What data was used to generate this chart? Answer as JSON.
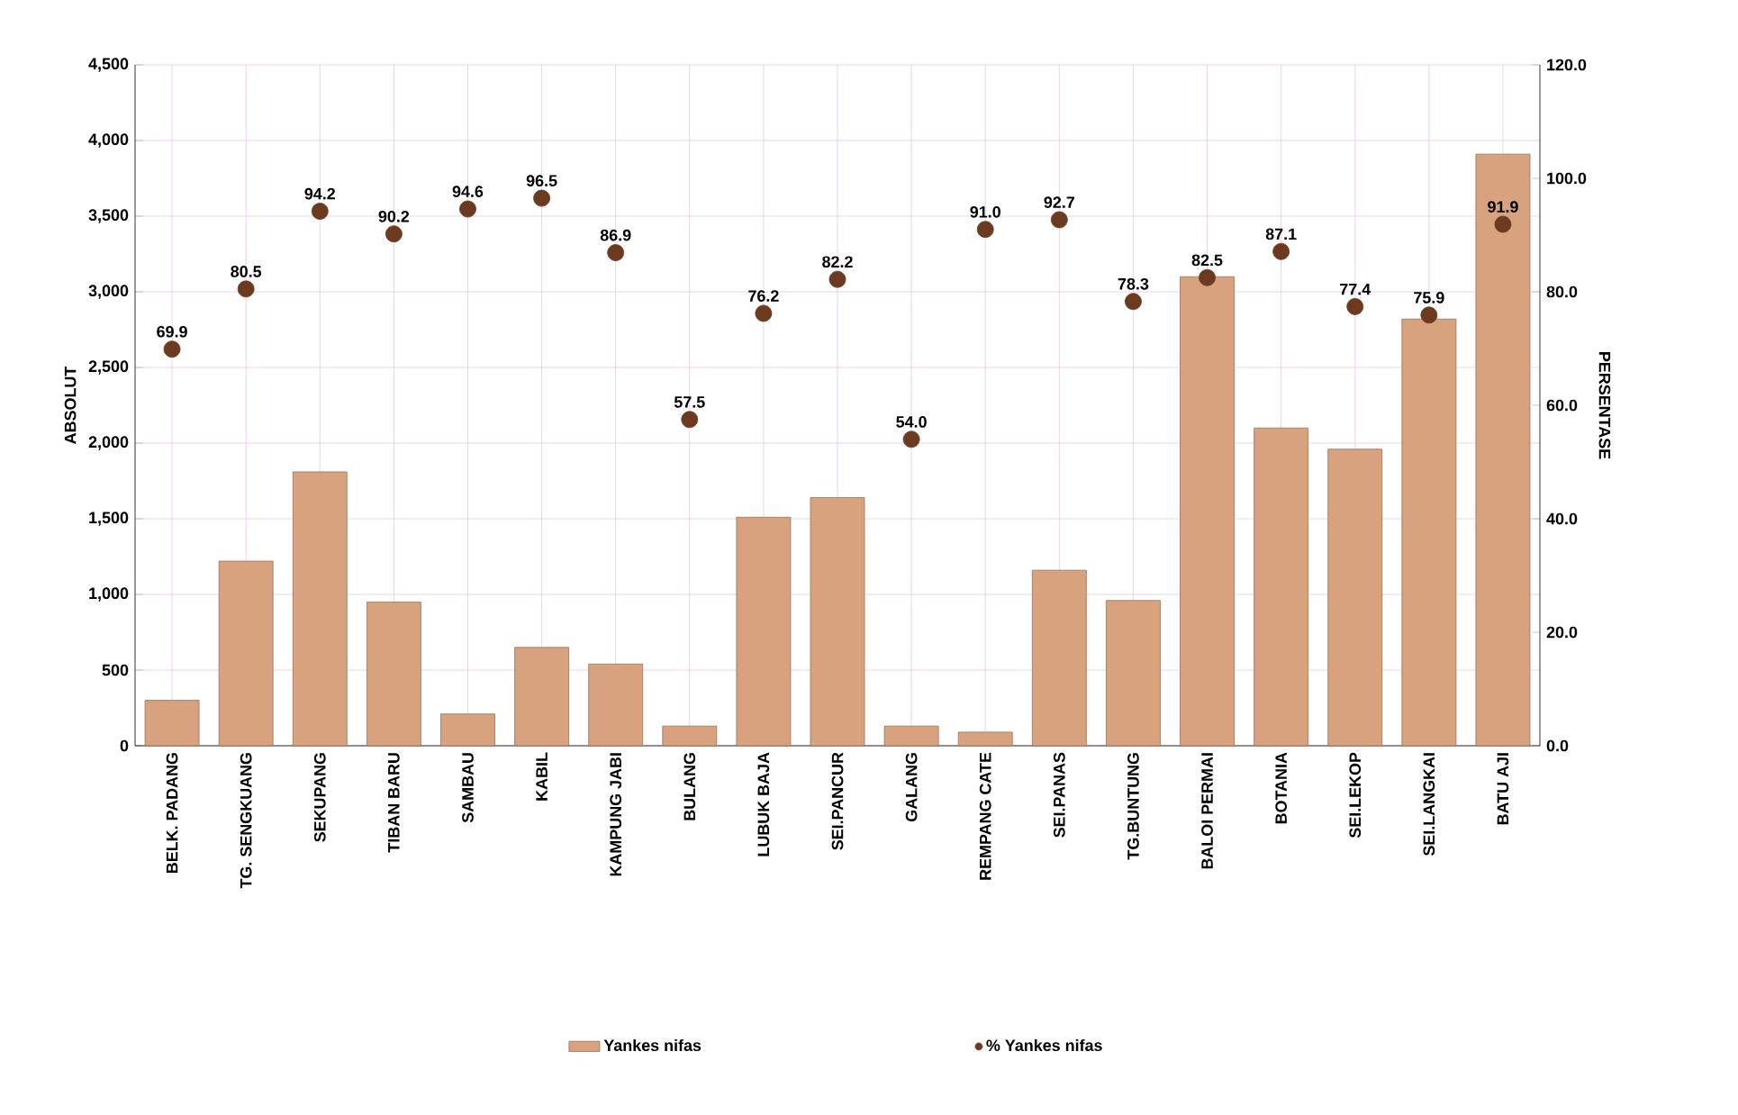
{
  "chart_data": {
    "type": "bar",
    "ylabel": "ABSOLUT",
    "y2label": "PERSENTASE",
    "categories": [
      "BELK.  PADANG",
      "TG. SENGKUANG",
      "SEKUPANG",
      "TIBAN BARU",
      "SAMBAU",
      "KABIL",
      "KAMPUNG JABI",
      "BULANG",
      "LUBUK BAJA",
      "SEI.PANCUR",
      "GALANG",
      "REMPANG CATE",
      "SEI.PANAS",
      "TG.BUNTUNG",
      "BALOI PERMAI",
      "BOTANIA",
      "SEI.LEKOP",
      "SEI.LANGKAI",
      "BATU AJI"
    ],
    "series": [
      {
        "name": "Yankes nifas",
        "color": "#d9a27e",
        "values": [
          300,
          1220,
          1810,
          950,
          210,
          650,
          540,
          130,
          1510,
          1640,
          130,
          90,
          1160,
          960,
          3100,
          2100,
          1960,
          2820,
          3910
        ]
      },
      {
        "name": "% Yankes nifas",
        "type": "scatter",
        "axis": "y2",
        "color": "#6b3a1f",
        "values": [
          69.9,
          80.5,
          94.2,
          90.2,
          94.6,
          96.5,
          86.9,
          57.5,
          76.2,
          82.2,
          54.0,
          91.0,
          92.7,
          78.3,
          82.5,
          87.1,
          77.4,
          75.9,
          91.9
        ],
        "value_labels": [
          "69.9",
          "80.5",
          "94.2",
          "90.2",
          "94.6",
          "96.5",
          "86.9",
          "57.5",
          "76.2",
          "82.2",
          "54.0",
          "91.0",
          "92.7",
          "78.3",
          "82.5",
          "87.1",
          "77.4",
          "75.9",
          "91.9"
        ]
      }
    ],
    "ylim": [
      0,
      4500
    ],
    "yticks": [
      {
        "value": 0,
        "label": "0"
      },
      {
        "value": 500,
        "label": "500"
      },
      {
        "value": 1000,
        "label": "1,000"
      },
      {
        "value": 1500,
        "label": "1,500"
      },
      {
        "value": 2000,
        "label": "2,000"
      },
      {
        "value": 2500,
        "label": "2,500"
      },
      {
        "value": 3000,
        "label": "3,000"
      },
      {
        "value": 3500,
        "label": "3,500"
      },
      {
        "value": 4000,
        "label": "4,000"
      },
      {
        "value": 4500,
        "label": "4,500"
      }
    ],
    "y2lim": [
      0,
      120
    ],
    "y2ticks": [
      {
        "value": 0,
        "label": "0.0"
      },
      {
        "value": 20,
        "label": "20.0"
      },
      {
        "value": 40,
        "label": "40.0"
      },
      {
        "value": 60,
        "label": "60.0"
      },
      {
        "value": 80,
        "label": "80.0"
      },
      {
        "value": 100,
        "label": "100.0"
      },
      {
        "value": 120,
        "label": "120.0"
      }
    ],
    "grid": true,
    "legend": "bottom"
  }
}
